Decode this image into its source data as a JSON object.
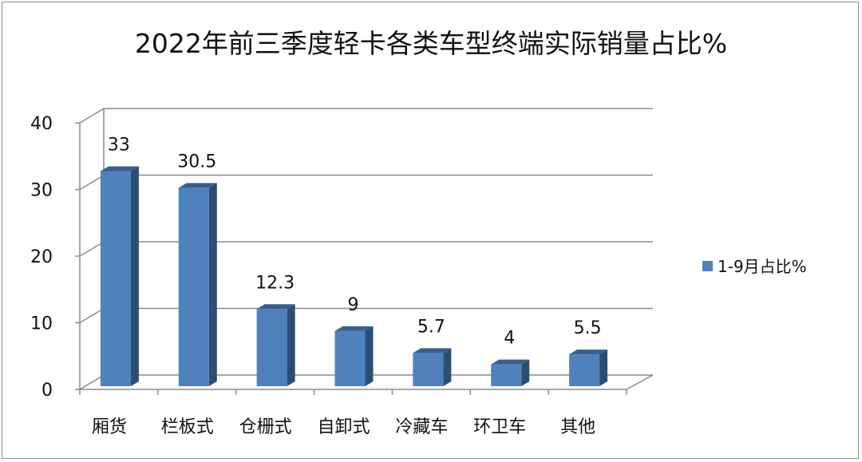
{
  "chart_data": {
    "type": "bar",
    "title": "2022年前三季度轻卡各类车型终端实际销量占比%",
    "categories": [
      "厢货",
      "栏板式",
      "仓栅式",
      "自卸式",
      "冷藏车",
      "环卫车",
      "其他"
    ],
    "series": [
      {
        "name": "1-9月占比%",
        "values": [
          33,
          30.5,
          12.3,
          9,
          5.7,
          4,
          5.5
        ],
        "color": "#4f81bd"
      }
    ],
    "data_labels": [
      "33",
      "30.5",
      "12.3",
      "9",
      "5.7",
      "4",
      "5.5"
    ],
    "ylim": [
      0,
      40
    ],
    "yticks": [
      0,
      10,
      20,
      30,
      40
    ],
    "xlabel": "",
    "ylabel": "",
    "grid": true,
    "legend_position": "right",
    "style": "3d-column"
  }
}
